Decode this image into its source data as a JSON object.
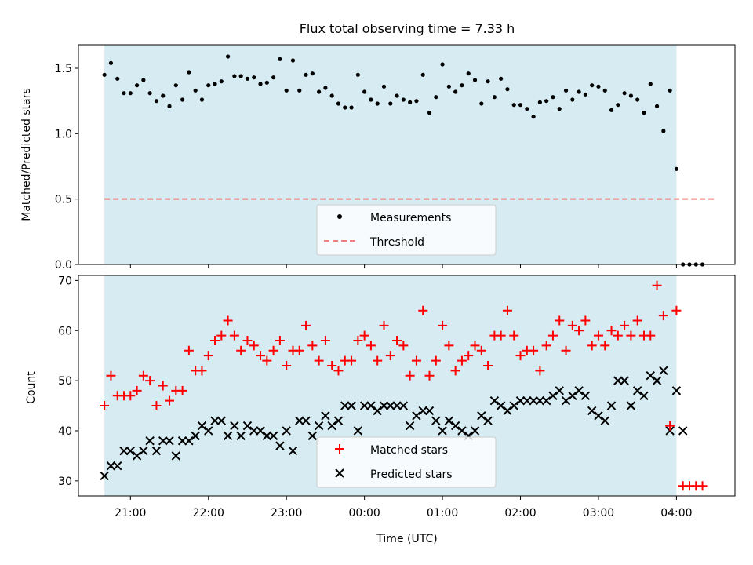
{
  "title": "Flux total observing time = 7.33 h",
  "colors": {
    "shade": "#add8e6",
    "matched": "#ff0000",
    "predicted": "#000000",
    "threshold": "#f08080",
    "measure": "#000000"
  },
  "chart_data": [
    {
      "type": "scatter",
      "ylabel": "Matched/Predicted stars",
      "xlim": [
        "20:20",
        "04:45"
      ],
      "ylim": [
        0,
        1.68
      ],
      "yticks": [
        "0.0",
        "0.5",
        "1.0",
        "1.5"
      ],
      "observing_window": [
        "20:40",
        "04:00"
      ],
      "threshold": 0.5,
      "legend": {
        "position": "lower center",
        "entries": [
          "Measurements",
          "Threshold"
        ]
      },
      "series": [
        {
          "name": "Measurements",
          "x": [
            "20:40",
            "20:45",
            "20:50",
            "20:55",
            "21:00",
            "21:05",
            "21:10",
            "21:15",
            "21:20",
            "21:25",
            "21:30",
            "21:35",
            "21:40",
            "21:45",
            "21:50",
            "21:55",
            "22:00",
            "22:05",
            "22:10",
            "22:15",
            "22:20",
            "22:25",
            "22:30",
            "22:35",
            "22:40",
            "22:45",
            "22:50",
            "22:55",
            "23:00",
            "23:05",
            "23:10",
            "23:15",
            "23:20",
            "23:25",
            "23:30",
            "23:35",
            "23:40",
            "23:45",
            "23:50",
            "23:55",
            "00:00",
            "00:05",
            "00:10",
            "00:15",
            "00:20",
            "00:25",
            "00:30",
            "00:35",
            "00:40",
            "00:45",
            "00:50",
            "00:55",
            "01:00",
            "01:05",
            "01:10",
            "01:15",
            "01:20",
            "01:25",
            "01:30",
            "01:35",
            "01:40",
            "01:45",
            "01:50",
            "01:55",
            "02:00",
            "02:05",
            "02:10",
            "02:15",
            "02:20",
            "02:25",
            "02:30",
            "02:35",
            "02:40",
            "02:45",
            "02:50",
            "02:55",
            "03:00",
            "03:05",
            "03:10",
            "03:15",
            "03:20",
            "03:25",
            "03:30",
            "03:35",
            "03:40",
            "03:45",
            "03:50",
            "03:55",
            "04:00",
            "04:05",
            "04:10",
            "04:15",
            "04:20"
          ],
          "y": [
            1.45,
            1.54,
            1.42,
            1.31,
            1.31,
            1.37,
            1.41,
            1.31,
            1.25,
            1.29,
            1.21,
            1.37,
            1.26,
            1.47,
            1.33,
            1.26,
            1.37,
            1.38,
            1.4,
            1.59,
            1.44,
            1.44,
            1.42,
            1.43,
            1.38,
            1.39,
            1.43,
            1.57,
            1.33,
            1.56,
            1.33,
            1.45,
            1.46,
            1.32,
            1.35,
            1.29,
            1.23,
            1.2,
            1.2,
            1.45,
            1.32,
            1.26,
            1.23,
            1.36,
            1.23,
            1.29,
            1.26,
            1.24,
            1.25,
            1.45,
            1.16,
            1.28,
            1.53,
            1.36,
            1.32,
            1.37,
            1.46,
            1.41,
            1.23,
            1.4,
            1.28,
            1.42,
            1.34,
            1.22,
            1.22,
            1.19,
            1.13,
            1.24,
            1.25,
            1.28,
            1.19,
            1.33,
            1.26,
            1.32,
            1.3,
            1.37,
            1.36,
            1.33,
            1.18,
            1.22,
            1.31,
            1.29,
            1.26,
            1.16,
            1.38,
            1.21,
            1.02,
            1.33,
            0.73,
            0,
            0,
            0,
            0
          ]
        },
        {
          "name": "Threshold",
          "x": [
            "20:40",
            "04:30"
          ],
          "y": [
            0.5,
            0.5
          ]
        }
      ]
    },
    {
      "type": "scatter",
      "xlabel": "Time (UTC)",
      "ylabel": "Count",
      "xlim": [
        "20:20",
        "04:45"
      ],
      "ylim": [
        27,
        71
      ],
      "yticks": [
        "30",
        "40",
        "50",
        "60",
        "70"
      ],
      "xticks": [
        "21:00",
        "22:00",
        "23:00",
        "00:00",
        "01:00",
        "02:00",
        "03:00",
        "04:00"
      ],
      "observing_window": [
        "20:40",
        "04:00"
      ],
      "legend": {
        "position": "lower center",
        "entries": [
          "Matched stars",
          "Predicted stars"
        ]
      },
      "series": [
        {
          "name": "Matched stars",
          "x": [
            "20:40",
            "20:45",
            "20:50",
            "20:55",
            "21:00",
            "21:05",
            "21:10",
            "21:15",
            "21:20",
            "21:25",
            "21:30",
            "21:35",
            "21:40",
            "21:45",
            "21:50",
            "21:55",
            "22:00",
            "22:05",
            "22:10",
            "22:15",
            "22:20",
            "22:25",
            "22:30",
            "22:35",
            "22:40",
            "22:45",
            "22:50",
            "22:55",
            "23:00",
            "23:05",
            "23:10",
            "23:15",
            "23:20",
            "23:25",
            "23:30",
            "23:35",
            "23:40",
            "23:45",
            "23:50",
            "23:55",
            "00:00",
            "00:05",
            "00:10",
            "00:15",
            "00:20",
            "00:25",
            "00:30",
            "00:35",
            "00:40",
            "00:45",
            "00:50",
            "00:55",
            "01:00",
            "01:05",
            "01:10",
            "01:15",
            "01:20",
            "01:25",
            "01:30",
            "01:35",
            "01:40",
            "01:45",
            "01:50",
            "01:55",
            "02:00",
            "02:05",
            "02:10",
            "02:15",
            "02:20",
            "02:25",
            "02:30",
            "02:35",
            "02:40",
            "02:45",
            "02:50",
            "02:55",
            "03:00",
            "03:05",
            "03:10",
            "03:15",
            "03:20",
            "03:25",
            "03:30",
            "03:35",
            "03:40",
            "03:45",
            "03:50",
            "03:55",
            "04:00",
            "04:05",
            "04:10",
            "04:15",
            "04:20"
          ],
          "y": [
            45,
            51,
            47,
            47,
            47,
            48,
            51,
            50,
            45,
            49,
            46,
            48,
            48,
            56,
            52,
            52,
            55,
            58,
            59,
            62,
            59,
            56,
            58,
            57,
            55,
            54,
            56,
            58,
            53,
            56,
            56,
            61,
            57,
            54,
            58,
            53,
            52,
            54,
            54,
            58,
            59,
            57,
            54,
            61,
            55,
            58,
            57,
            51,
            54,
            64,
            51,
            54,
            61,
            57,
            52,
            54,
            55,
            57,
            56,
            53,
            59,
            59,
            64,
            59,
            55,
            56,
            56,
            52,
            57,
            59,
            62,
            56,
            61,
            60,
            62,
            57,
            59,
            57,
            60,
            59,
            61,
            59,
            62,
            59,
            59,
            69,
            63,
            41,
            64,
            29,
            29,
            29,
            29
          ]
        },
        {
          "name": "Predicted stars",
          "x": [
            "20:40",
            "20:45",
            "20:50",
            "20:55",
            "21:00",
            "21:05",
            "21:10",
            "21:15",
            "21:20",
            "21:25",
            "21:30",
            "21:35",
            "21:40",
            "21:45",
            "21:50",
            "21:55",
            "22:00",
            "22:05",
            "22:10",
            "22:15",
            "22:20",
            "22:25",
            "22:30",
            "22:35",
            "22:40",
            "22:45",
            "22:50",
            "22:55",
            "23:00",
            "23:05",
            "23:10",
            "23:15",
            "23:20",
            "23:25",
            "23:30",
            "23:35",
            "23:40",
            "23:45",
            "23:50",
            "23:55",
            "00:00",
            "00:05",
            "00:10",
            "00:15",
            "00:20",
            "00:25",
            "00:30",
            "00:35",
            "00:40",
            "00:45",
            "00:50",
            "00:55",
            "01:00",
            "01:05",
            "01:10",
            "01:15",
            "01:20",
            "01:25",
            "01:30",
            "01:35",
            "01:40",
            "01:45",
            "01:50",
            "01:55",
            "02:00",
            "02:05",
            "02:10",
            "02:15",
            "02:20",
            "02:25",
            "02:30",
            "02:35",
            "02:40",
            "02:45",
            "02:50",
            "02:55",
            "03:00",
            "03:05",
            "03:10",
            "03:15",
            "03:20",
            "03:25",
            "03:30",
            "03:35",
            "03:40",
            "03:45",
            "03:50",
            "03:55",
            "04:00",
            "04:05"
          ],
          "y": [
            31,
            33,
            33,
            36,
            36,
            35,
            36,
            38,
            36,
            38,
            38,
            35,
            38,
            38,
            39,
            41,
            40,
            42,
            42,
            39,
            41,
            39,
            41,
            40,
            40,
            39,
            39,
            37,
            40,
            36,
            42,
            42,
            39,
            41,
            43,
            41,
            42,
            45,
            45,
            40,
            45,
            45,
            44,
            45,
            45,
            45,
            45,
            41,
            43,
            44,
            44,
            42,
            40,
            42,
            41,
            40,
            39,
            40,
            43,
            42,
            46,
            45,
            44,
            45,
            46,
            46,
            46,
            46,
            46,
            47,
            48,
            46,
            47,
            48,
            47,
            44,
            43,
            42,
            45,
            50,
            50,
            45,
            48,
            47,
            51,
            50,
            52,
            40,
            48,
            40
          ]
        }
      ]
    }
  ]
}
